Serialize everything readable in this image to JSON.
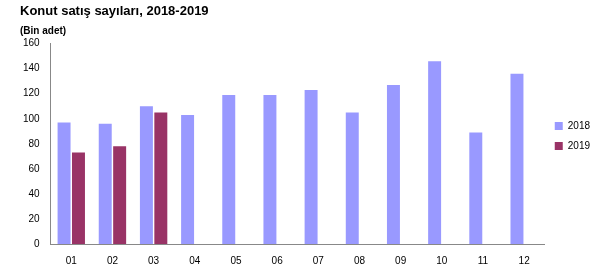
{
  "chart_data": {
    "type": "bar",
    "title": "Konut satış sayıları, 2018-2019",
    "ylabel": "(Bin adet)",
    "categories": [
      "01",
      "02",
      "03",
      "04",
      "05",
      "06",
      "07",
      "08",
      "09",
      "10",
      "11",
      "12"
    ],
    "series": [
      {
        "name": "2018",
        "color": "#9999ff",
        "values": [
          97,
          96,
          110,
          103,
          119,
          119,
          123,
          105,
          127,
          146,
          89,
          136
        ]
      },
      {
        "name": "2019",
        "color": "#993366",
        "values": [
          73,
          78,
          105,
          null,
          null,
          null,
          null,
          null,
          null,
          null,
          null,
          null
        ]
      }
    ],
    "ylim": [
      0,
      160
    ],
    "yticks": [
      0,
      20,
      40,
      60,
      80,
      100,
      120,
      140,
      160
    ],
    "grid": false,
    "legend": "right"
  }
}
